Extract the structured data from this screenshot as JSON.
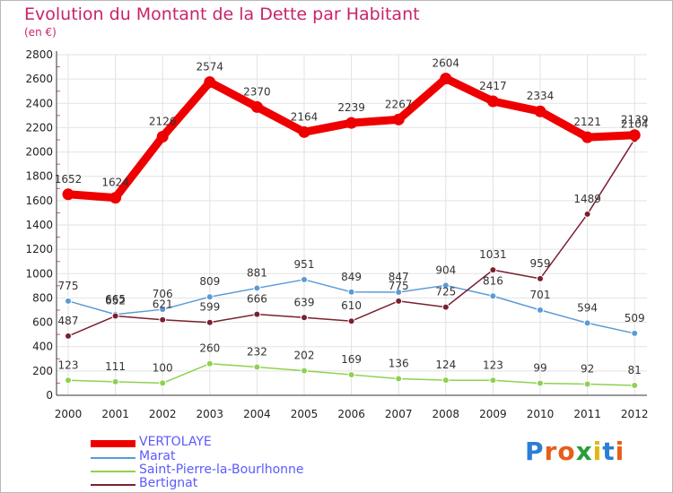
{
  "title": "Evolution du Montant de la Dette par Habitant",
  "subtitle": "(en €)",
  "brand": {
    "text": "Proxiti",
    "letters": [
      "P",
      "r",
      "o",
      "x",
      "i",
      "t",
      "i"
    ],
    "colors": [
      "#2b7fd4",
      "#e85d1a",
      "#e85d1a",
      "#2b9d3a",
      "#e0b80f",
      "#2b7fd4",
      "#e85d1a"
    ]
  },
  "chart_data": {
    "type": "line",
    "title": "Evolution du Montant de la Dette par Habitant",
    "subtitle": "(en €)",
    "x": [
      "2000",
      "2001",
      "2002",
      "2003",
      "2004",
      "2005",
      "2006",
      "2007",
      "2008",
      "2009",
      "2010",
      "2011",
      "2012"
    ],
    "ylim": [
      0,
      2800
    ],
    "yticks": [
      0,
      200,
      400,
      600,
      800,
      1000,
      1200,
      1400,
      1600,
      1800,
      2000,
      2200,
      2400,
      2600,
      2800
    ],
    "grid": true,
    "legend_position": "bottom-left",
    "series": [
      {
        "name": "VERTOLAYE",
        "color": "#ee0000",
        "emphasis": true,
        "values": [
          1652,
          1624,
          2126,
          2574,
          2370,
          2164,
          2239,
          2267,
          2604,
          2417,
          2334,
          2121,
          2139
        ]
      },
      {
        "name": "Marat",
        "color": "#5b9bd5",
        "values": [
          775,
          665,
          706,
          809,
          881,
          951,
          849,
          847,
          904,
          816,
          701,
          594,
          509
        ]
      },
      {
        "name": "Saint-Pierre-la-Bourlhonne",
        "color": "#8fd14f",
        "values": [
          123,
          111,
          100,
          260,
          232,
          202,
          169,
          136,
          124,
          123,
          99,
          92,
          81
        ]
      },
      {
        "name": "Bertignat",
        "color": "#7a2030",
        "values": [
          487,
          652,
          621,
          599,
          666,
          639,
          610,
          775,
          725,
          1031,
          959,
          1489,
          2104
        ]
      }
    ]
  }
}
